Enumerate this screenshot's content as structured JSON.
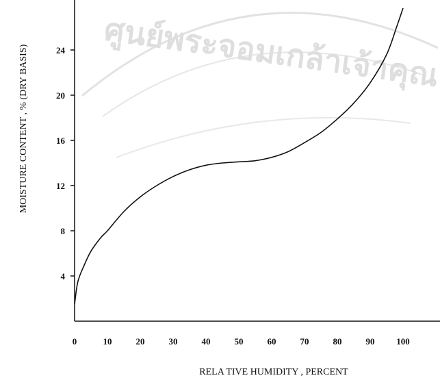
{
  "watermark": {
    "text": "ศูนย์พระจอมเกล้าเจ้าคุณ",
    "color": "#c9c9c9"
  },
  "chart_data": {
    "type": "line",
    "title": "",
    "xlabel": "RELA TIVE HUMIDITY , PERCENT",
    "ylabel": "MOISTURE CONTENT , % (DRY BASIS)",
    "xlim": [
      0,
      100
    ],
    "ylim": [
      0,
      28
    ],
    "x_ticks": [
      "0",
      "10",
      "20",
      "30",
      "40",
      "50",
      "60",
      "70",
      "80",
      "90",
      "100"
    ],
    "y_ticks": [
      "4",
      "8",
      "12",
      "16",
      "20",
      "24"
    ],
    "x_tick_values": [
      0,
      10,
      20,
      30,
      40,
      50,
      60,
      70,
      80,
      90,
      100
    ],
    "y_tick_values": [
      4,
      8,
      12,
      16,
      20,
      24
    ],
    "grid": false,
    "line_color": "#111111",
    "series": [
      {
        "x": [
          0,
          1,
          3,
          5,
          8,
          10,
          15,
          20,
          25,
          30,
          35,
          40,
          45,
          50,
          55,
          60,
          65,
          70,
          75,
          80,
          85,
          90,
          95,
          98,
          100
        ],
        "y": [
          1.5,
          3.5,
          5.0,
          6.2,
          7.4,
          8.0,
          9.7,
          11.0,
          12.0,
          12.8,
          13.4,
          13.8,
          14.0,
          14.1,
          14.2,
          14.5,
          15.0,
          15.8,
          16.7,
          17.9,
          19.3,
          21.1,
          23.6,
          26.0,
          27.7
        ]
      }
    ]
  }
}
